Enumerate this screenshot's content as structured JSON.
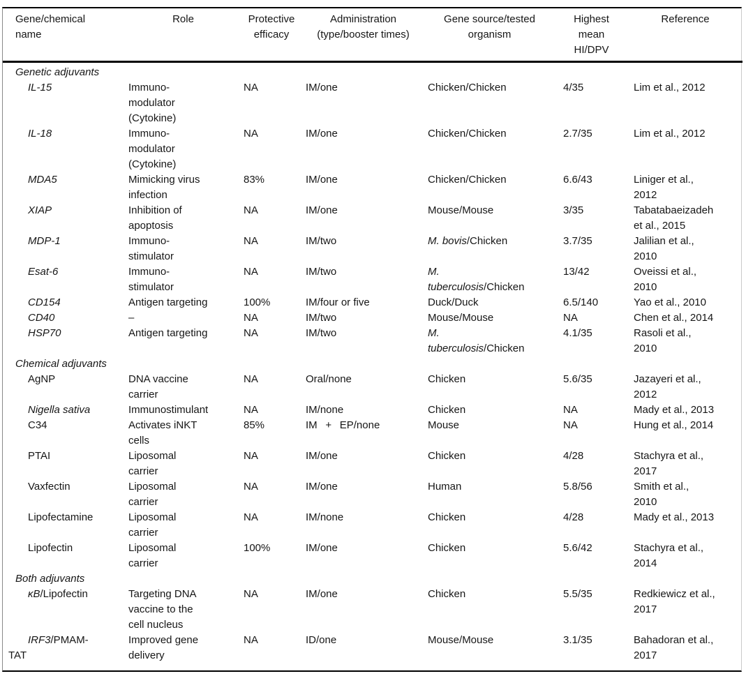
{
  "table": {
    "columns": [
      {
        "id": "name",
        "label": "Gene/chemical\nname"
      },
      {
        "id": "role",
        "label": "Role"
      },
      {
        "id": "efficacy",
        "label": "Protective\nefficacy"
      },
      {
        "id": "administration",
        "label": "Administration\n(type/booster times)"
      },
      {
        "id": "source",
        "label": "Gene source/tested\norganism"
      },
      {
        "id": "hi_dpv",
        "label": "Highest\nmean\nHI/DPV"
      },
      {
        "id": "reference",
        "label": "Reference"
      }
    ],
    "sections": [
      {
        "title": "Genetic adjuvants",
        "rows": [
          {
            "name": [
              {
                "t": "IL-15",
                "i": true
              }
            ],
            "role": "Immuno-\nmodulator\n(Cytokine)",
            "efficacy": "NA",
            "administration": "IM/one",
            "source": [
              {
                "t": "Chicken/Chicken"
              }
            ],
            "hi_dpv": "4/35",
            "reference": "Lim et al., 2012"
          },
          {
            "name": [
              {
                "t": "IL-18",
                "i": true
              }
            ],
            "role": "Immuno-\nmodulator\n(Cytokine)",
            "efficacy": "NA",
            "administration": "IM/one",
            "source": [
              {
                "t": "Chicken/Chicken"
              }
            ],
            "hi_dpv": "2.7/35",
            "reference": "Lim et al., 2012"
          },
          {
            "name": [
              {
                "t": "MDA5",
                "i": true
              }
            ],
            "role": "Mimicking virus\ninfection",
            "efficacy": "83%",
            "administration": "IM/one",
            "source": [
              {
                "t": "Chicken/Chicken"
              }
            ],
            "hi_dpv": "6.6/43",
            "reference": "Liniger et al.,\n2012"
          },
          {
            "name": [
              {
                "t": "XIAP",
                "i": true
              }
            ],
            "role": "Inhibition of\napoptosis",
            "efficacy": "NA",
            "administration": "IM/one",
            "source": [
              {
                "t": "Mouse/Mouse"
              }
            ],
            "hi_dpv": "3/35",
            "reference": "Tabatabaeizadeh\net al., 2015"
          },
          {
            "name": [
              {
                "t": "MDP-1",
                "i": true
              }
            ],
            "role": "Immuno-\nstimulator",
            "efficacy": "NA",
            "administration": "IM/two",
            "source": [
              {
                "t": "M. bovis",
                "i": true
              },
              {
                "t": "/Chicken"
              }
            ],
            "hi_dpv": "3.7/35",
            "reference": "Jalilian et al.,\n2010"
          },
          {
            "name": [
              {
                "t": "Esat-6",
                "i": true
              }
            ],
            "role": "Immuno-\nstimulator",
            "efficacy": "NA",
            "administration": "IM/two",
            "source": [
              {
                "t": "M.\ntuberculosis",
                "i": true
              },
              {
                "t": "/Chicken"
              }
            ],
            "hi_dpv": "13/42",
            "reference": "Oveissi et al.,\n2010"
          },
          {
            "name": [
              {
                "t": "CD154",
                "i": true
              }
            ],
            "role": "Antigen targeting",
            "efficacy": "100%",
            "administration": "IM/four or five",
            "source": [
              {
                "t": "Duck/Duck"
              }
            ],
            "hi_dpv": "6.5/140",
            "reference": "Yao et al., 2010"
          },
          {
            "name": [
              {
                "t": "CD40",
                "i": true
              }
            ],
            "role": "–",
            "efficacy": "NA",
            "administration": "IM/two",
            "source": [
              {
                "t": "Mouse/Mouse"
              }
            ],
            "hi_dpv": "NA",
            "reference": "Chen et al., 2014"
          },
          {
            "name": [
              {
                "t": "HSP70",
                "i": true
              }
            ],
            "role": "Antigen targeting",
            "efficacy": "NA",
            "administration": "IM/two",
            "source": [
              {
                "t": "M.\ntuberculosis",
                "i": true
              },
              {
                "t": "/Chicken"
              }
            ],
            "hi_dpv": "4.1/35",
            "reference": "Rasoli et al.,\n2010"
          }
        ]
      },
      {
        "title": "Chemical adjuvants",
        "rows": [
          {
            "name": [
              {
                "t": "AgNP"
              }
            ],
            "role": "DNA vaccine\ncarrier",
            "efficacy": "NA",
            "administration": "Oral/none",
            "source": [
              {
                "t": "Chicken"
              }
            ],
            "hi_dpv": "5.6/35",
            "reference": "Jazayeri et al.,\n2012"
          },
          {
            "name": [
              {
                "t": "Nigella sativa",
                "i": true
              }
            ],
            "role": "Immunostimulant",
            "efficacy": "NA",
            "administration": "IM/none",
            "source": [
              {
                "t": "Chicken"
              }
            ],
            "hi_dpv": "NA",
            "reference": "Mady et al., 2013"
          },
          {
            "name": [
              {
                "t": "C34"
              }
            ],
            "role": "Activates iNKT\ncells",
            "efficacy": "85%",
            "administration": "IM  +  EP/none",
            "source": [
              {
                "t": "Mouse"
              }
            ],
            "hi_dpv": "NA",
            "reference": "Hung et al., 2014"
          },
          {
            "name": [
              {
                "t": "PTAI"
              }
            ],
            "role": "Liposomal\ncarrier",
            "efficacy": "NA",
            "administration": "IM/one",
            "source": [
              {
                "t": "Chicken"
              }
            ],
            "hi_dpv": "4/28",
            "reference": "Stachyra et al.,\n2017"
          },
          {
            "name": [
              {
                "t": "Vaxfectin"
              }
            ],
            "role": "Liposomal\ncarrier",
            "efficacy": "NA",
            "administration": "IM/one",
            "source": [
              {
                "t": "Human"
              }
            ],
            "hi_dpv": "5.8/56",
            "reference": "Smith et al.,\n2010"
          },
          {
            "name": [
              {
                "t": "Lipofectamine"
              }
            ],
            "role": "Liposomal\ncarrier",
            "efficacy": "NA",
            "administration": "IM/none",
            "source": [
              {
                "t": "Chicken"
              }
            ],
            "hi_dpv": "4/28",
            "reference": "Mady et al., 2013"
          },
          {
            "name": [
              {
                "t": "Lipofectin"
              }
            ],
            "role": "Liposomal\ncarrier",
            "efficacy": "100%",
            "administration": "IM/one",
            "source": [
              {
                "t": "Chicken"
              }
            ],
            "hi_dpv": "5.6/42",
            "reference": "Stachyra et al.,\n2014"
          }
        ]
      },
      {
        "title": "Both adjuvants",
        "rows": [
          {
            "name": [
              {
                "t": "κB",
                "i": true
              },
              {
                "t": "/Lipofectin"
              }
            ],
            "role": "Targeting DNA\nvaccine to the\ncell nucleus",
            "efficacy": "NA",
            "administration": "IM/one",
            "source": [
              {
                "t": "Chicken"
              }
            ],
            "hi_dpv": "5.5/35",
            "reference": "Redkiewicz et al.,\n2017"
          },
          {
            "name": [
              {
                "t": "IRF3",
                "i": true
              },
              {
                "t": "/PMAM-\nTAT"
              }
            ],
            "role": "Improved gene\ndelivery",
            "efficacy": "NA",
            "administration": "ID/one",
            "source": [
              {
                "t": "Mouse/Mouse"
              }
            ],
            "hi_dpv": "3.1/35",
            "reference": "Bahadoran et al.,\n2017"
          }
        ]
      }
    ]
  }
}
